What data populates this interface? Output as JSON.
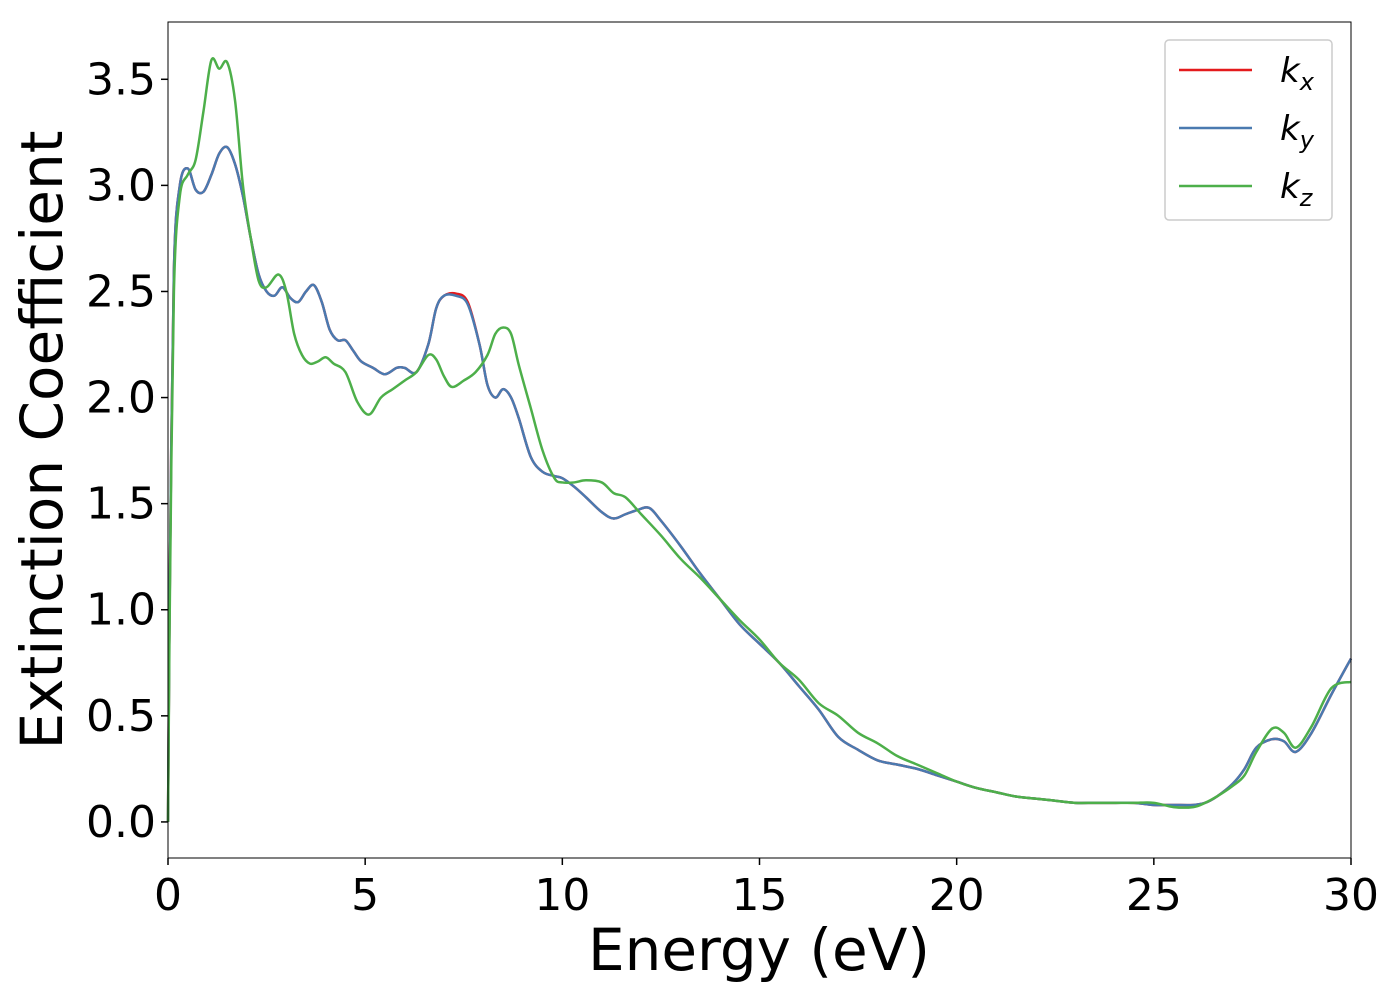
{
  "chart_data": {
    "type": "line",
    "title": "",
    "xlabel": "Energy (eV)",
    "ylabel": "Extinction Coefficient",
    "xlim": [
      0,
      30
    ],
    "ylim": [
      -0.17,
      3.77
    ],
    "xticks": [
      0,
      5,
      10,
      15,
      20,
      25,
      30
    ],
    "xtick_labels": [
      "0",
      "5",
      "10",
      "15",
      "20",
      "25",
      "30"
    ],
    "yticks": [
      0.0,
      0.5,
      1.0,
      1.5,
      2.0,
      2.5,
      3.0,
      3.5
    ],
    "ytick_labels": [
      "0.0",
      "0.5",
      "1.0",
      "1.5",
      "2.0",
      "2.5",
      "3.0",
      "3.5"
    ],
    "grid": false,
    "legend_position": "top-right",
    "series": [
      {
        "name": "k_x",
        "label_main": "k",
        "label_sub": "x",
        "color": "#e41a1c",
        "x": [
          0,
          0.05,
          0.15,
          0.3,
          0.5,
          0.7,
          0.9,
          1.1,
          1.3,
          1.5,
          1.7,
          1.9,
          2.1,
          2.3,
          2.5,
          2.7,
          2.9,
          3.1,
          3.3,
          3.5,
          3.7,
          3.9,
          4.1,
          4.3,
          4.5,
          4.7,
          4.9,
          5.2,
          5.5,
          5.8,
          6.0,
          6.3,
          6.6,
          6.8,
          7.0,
          7.3,
          7.6,
          7.9,
          8.1,
          8.3,
          8.5,
          8.7,
          8.9,
          9.2,
          9.5,
          9.8,
          10.0,
          10.3,
          10.6,
          11.0,
          11.3,
          11.6,
          11.9,
          12.2,
          12.5,
          13.0,
          13.5,
          14.0,
          14.5,
          15.0,
          15.5,
          16.0,
          16.5,
          17.0,
          17.5,
          18.0,
          18.5,
          19.0,
          19.5,
          20.0,
          20.5,
          21.0,
          21.5,
          22.0,
          22.5,
          23.0,
          23.5,
          24.0,
          24.5,
          25.0,
          25.5,
          26.0,
          26.3,
          26.6,
          27.0,
          27.3,
          27.6,
          28.0,
          28.3,
          28.6,
          29.0,
          29.5,
          30.0
        ],
        "y": [
          0.0,
          1.2,
          2.6,
          3.0,
          3.08,
          2.98,
          2.97,
          3.05,
          3.15,
          3.18,
          3.1,
          2.95,
          2.75,
          2.58,
          2.5,
          2.48,
          2.52,
          2.47,
          2.45,
          2.5,
          2.53,
          2.45,
          2.32,
          2.27,
          2.27,
          2.22,
          2.17,
          2.14,
          2.11,
          2.14,
          2.14,
          2.12,
          2.25,
          2.42,
          2.48,
          2.49,
          2.45,
          2.25,
          2.06,
          2.0,
          2.04,
          2.0,
          1.9,
          1.72,
          1.65,
          1.63,
          1.62,
          1.58,
          1.53,
          1.46,
          1.43,
          1.45,
          1.47,
          1.48,
          1.42,
          1.3,
          1.17,
          1.05,
          0.93,
          0.84,
          0.75,
          0.64,
          0.53,
          0.4,
          0.34,
          0.29,
          0.27,
          0.25,
          0.22,
          0.19,
          0.16,
          0.14,
          0.12,
          0.11,
          0.1,
          0.09,
          0.09,
          0.09,
          0.09,
          0.08,
          0.08,
          0.08,
          0.09,
          0.12,
          0.18,
          0.25,
          0.35,
          0.39,
          0.38,
          0.33,
          0.42,
          0.6,
          0.77
        ]
      },
      {
        "name": "k_y",
        "label_main": "k",
        "label_sub": "y",
        "color": "#4a7ab0",
        "x": [
          0,
          0.05,
          0.15,
          0.3,
          0.5,
          0.7,
          0.9,
          1.1,
          1.3,
          1.5,
          1.7,
          1.9,
          2.1,
          2.3,
          2.5,
          2.7,
          2.9,
          3.1,
          3.3,
          3.5,
          3.7,
          3.9,
          4.1,
          4.3,
          4.5,
          4.7,
          4.9,
          5.2,
          5.5,
          5.8,
          6.0,
          6.3,
          6.6,
          6.8,
          7.0,
          7.3,
          7.6,
          7.9,
          8.1,
          8.3,
          8.5,
          8.7,
          8.9,
          9.2,
          9.5,
          9.8,
          10.0,
          10.3,
          10.6,
          11.0,
          11.3,
          11.6,
          11.9,
          12.2,
          12.5,
          13.0,
          13.5,
          14.0,
          14.5,
          15.0,
          15.5,
          16.0,
          16.5,
          17.0,
          17.5,
          18.0,
          18.5,
          19.0,
          19.5,
          20.0,
          20.5,
          21.0,
          21.5,
          22.0,
          22.5,
          23.0,
          23.5,
          24.0,
          24.5,
          25.0,
          25.5,
          26.0,
          26.3,
          26.6,
          27.0,
          27.3,
          27.6,
          28.0,
          28.3,
          28.6,
          29.0,
          29.5,
          30.0
        ],
        "y": [
          0.0,
          1.2,
          2.6,
          3.0,
          3.08,
          2.98,
          2.97,
          3.05,
          3.15,
          3.18,
          3.1,
          2.95,
          2.75,
          2.58,
          2.5,
          2.48,
          2.52,
          2.47,
          2.45,
          2.5,
          2.53,
          2.45,
          2.32,
          2.27,
          2.27,
          2.22,
          2.17,
          2.14,
          2.11,
          2.14,
          2.14,
          2.12,
          2.25,
          2.42,
          2.48,
          2.48,
          2.44,
          2.25,
          2.06,
          2.0,
          2.04,
          2.0,
          1.9,
          1.72,
          1.65,
          1.63,
          1.62,
          1.58,
          1.53,
          1.46,
          1.43,
          1.45,
          1.47,
          1.48,
          1.42,
          1.3,
          1.17,
          1.05,
          0.93,
          0.84,
          0.75,
          0.64,
          0.53,
          0.4,
          0.34,
          0.29,
          0.27,
          0.25,
          0.22,
          0.19,
          0.16,
          0.14,
          0.12,
          0.11,
          0.1,
          0.09,
          0.09,
          0.09,
          0.09,
          0.08,
          0.08,
          0.08,
          0.09,
          0.12,
          0.18,
          0.25,
          0.35,
          0.39,
          0.38,
          0.33,
          0.42,
          0.6,
          0.77
        ]
      },
      {
        "name": "k_z",
        "label_main": "k",
        "label_sub": "z",
        "color": "#4daf4a",
        "x": [
          0,
          0.05,
          0.15,
          0.3,
          0.5,
          0.7,
          0.9,
          1.1,
          1.3,
          1.5,
          1.7,
          1.9,
          2.1,
          2.3,
          2.5,
          2.8,
          3.0,
          3.2,
          3.4,
          3.6,
          3.8,
          4.0,
          4.2,
          4.5,
          4.8,
          5.1,
          5.4,
          5.7,
          6.0,
          6.3,
          6.6,
          6.8,
          7.0,
          7.2,
          7.5,
          7.8,
          8.1,
          8.3,
          8.5,
          8.7,
          8.9,
          9.2,
          9.5,
          9.8,
          10.0,
          10.3,
          10.6,
          11.0,
          11.3,
          11.6,
          12.0,
          12.5,
          13.0,
          13.5,
          14.0,
          14.5,
          15.0,
          15.5,
          16.0,
          16.5,
          17.0,
          17.5,
          18.0,
          18.5,
          19.0,
          19.5,
          20.0,
          20.5,
          21.0,
          21.5,
          22.0,
          22.5,
          23.0,
          23.5,
          24.0,
          24.5,
          25.0,
          25.5,
          26.0,
          26.3,
          26.6,
          27.0,
          27.3,
          27.6,
          28.0,
          28.3,
          28.6,
          29.0,
          29.5,
          30.0
        ],
        "y": [
          0.0,
          1.1,
          2.5,
          2.95,
          3.05,
          3.12,
          3.35,
          3.59,
          3.55,
          3.58,
          3.4,
          3.0,
          2.75,
          2.55,
          2.52,
          2.58,
          2.5,
          2.3,
          2.2,
          2.16,
          2.17,
          2.19,
          2.16,
          2.12,
          1.98,
          1.92,
          2.0,
          2.04,
          2.08,
          2.12,
          2.2,
          2.18,
          2.1,
          2.05,
          2.08,
          2.12,
          2.2,
          2.3,
          2.33,
          2.3,
          2.15,
          1.95,
          1.75,
          1.62,
          1.6,
          1.6,
          1.61,
          1.6,
          1.55,
          1.53,
          1.45,
          1.35,
          1.24,
          1.15,
          1.05,
          0.95,
          0.86,
          0.75,
          0.67,
          0.56,
          0.5,
          0.42,
          0.37,
          0.31,
          0.27,
          0.23,
          0.19,
          0.16,
          0.14,
          0.12,
          0.11,
          0.1,
          0.09,
          0.09,
          0.09,
          0.09,
          0.09,
          0.07,
          0.07,
          0.09,
          0.12,
          0.17,
          0.22,
          0.33,
          0.44,
          0.42,
          0.35,
          0.45,
          0.63,
          0.66
        ]
      }
    ]
  }
}
